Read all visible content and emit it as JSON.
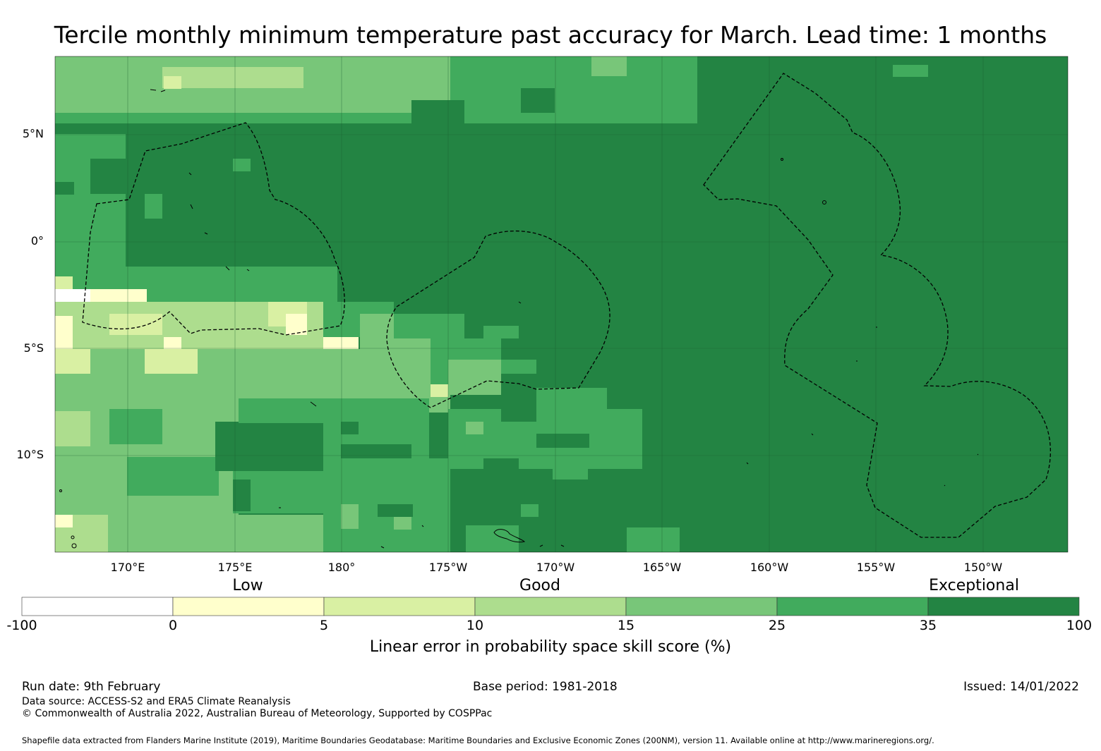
{
  "title": "Tercile monthly minimum temperature past accuracy for March. Lead time: 1 months",
  "map": {
    "lon_labels": [
      "170°E",
      "175°E",
      "180°",
      "175°W",
      "170°W",
      "165°W",
      "160°W",
      "155°W",
      "150°W"
    ],
    "lat_labels": [
      "5°N",
      "0°",
      "5°S",
      "10°S"
    ],
    "categories": [
      "Low",
      "Good",
      "Exceptional"
    ]
  },
  "colorbar": {
    "ticks": [
      "-100",
      "0",
      "5",
      "10",
      "15",
      "25",
      "35",
      "100"
    ],
    "colors": [
      "#ffffff",
      "#ffffcc",
      "#d9f0a3",
      "#addd8e",
      "#78c679",
      "#41ab5d",
      "#238443"
    ],
    "title": "Linear error in probability space skill score (%)"
  },
  "footer": {
    "run_date": "Run date: 9th February",
    "base_period": "Base period: 1981-2018",
    "issued": "Issued: 14/01/2022",
    "data_source": "Data source: ACCESS-S2 and ERA5 Climate Reanalysis",
    "copyright": "© Commonwealth of Australia 2022, Australian Bureau of Meteorology, Supported by COSPPac",
    "shapefile": "Shapefile data extracted from Flanders Marine Institute (2019), Maritime Boundaries Geodatabase: Maritime Boundaries and Exclusive Economic Zones (200NM), version 11. Available online at http://www.marineregions.org/."
  }
}
